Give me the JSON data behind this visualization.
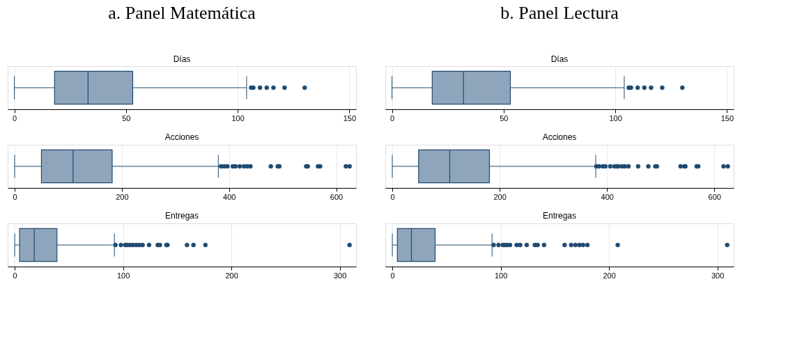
{
  "chart_data": [
    {
      "type": "box",
      "orientation": "horizontal",
      "title": "a. Panel Matemática",
      "subtitle": "Días",
      "categories": [
        null
      ],
      "color": "#8fa5bb",
      "xlim": [
        -3,
        153
      ],
      "xticks": [
        0,
        50,
        100,
        150
      ],
      "grid": "x",
      "tick_labels": "x",
      "boxes": [
        {
          "low": 0,
          "q1": 18,
          "median": 33,
          "q3": 53,
          "high": 104,
          "outliers": [
            106,
            107,
            110,
            113,
            116,
            121,
            130
          ]
        }
      ]
    },
    {
      "type": "box",
      "orientation": "horizontal",
      "title": "b. Panel Lectura",
      "subtitle": "Días",
      "categories": [
        null
      ],
      "color": "#8fa5bb",
      "xlim": [
        -3,
        153
      ],
      "xticks": [
        0,
        50,
        100,
        150
      ],
      "grid": "x",
      "tick_labels": "x",
      "boxes": [
        {
          "low": 0,
          "q1": 18,
          "median": 32,
          "q3": 53,
          "high": 104,
          "outliers": [
            106,
            107,
            110,
            113,
            116,
            121,
            130
          ]
        }
      ]
    },
    {
      "type": "box",
      "orientation": "horizontal",
      "title": "Acciones",
      "categories": [
        null
      ],
      "color": "#8fa5bb",
      "xlim": [
        -13,
        637
      ],
      "xticks": [
        0,
        200,
        400,
        600
      ],
      "grid": "x",
      "tick_labels": "x",
      "boxes": [
        {
          "low": 0,
          "q1": 50,
          "median": 109,
          "q3": 182,
          "high": 380,
          "outliers": [
            385,
            391,
            397,
            407,
            412,
            420,
            428,
            434,
            440,
            478,
            491,
            494,
            544,
            547,
            566,
            570,
            618,
            625
          ]
        }
      ]
    },
    {
      "type": "box",
      "orientation": "horizontal",
      "title": "Acciones",
      "categories": [
        null
      ],
      "color": "#8fa5bb",
      "xlim": [
        -13,
        636
      ],
      "xticks": [
        0,
        200,
        400,
        600
      ],
      "grid": "x",
      "tick_labels": "x",
      "boxes": [
        {
          "low": 0,
          "q1": 49,
          "median": 107,
          "q3": 181,
          "high": 379,
          "outliers": [
            380,
            385,
            392,
            397,
            406,
            414,
            418,
            421,
            428,
            433,
            440,
            458,
            477,
            490,
            493,
            537,
            544,
            546,
            567,
            570,
            617,
            625
          ]
        }
      ]
    },
    {
      "type": "box",
      "orientation": "horizontal",
      "title": "Entregas",
      "categories": [
        null
      ],
      "color": "#8fa5bb",
      "xlim": [
        -6.5,
        315
      ],
      "xticks": [
        0,
        100,
        200,
        300
      ],
      "grid": "x",
      "tick_labels": "x",
      "boxes": [
        {
          "low": 0,
          "q1": 4.5,
          "median": 18,
          "q3": 39,
          "high": 92,
          "outliers": [
            93,
            98,
            102,
            104,
            106.5,
            109,
            112,
            115,
            118,
            124,
            132,
            134,
            140,
            141,
            159,
            165,
            176,
            309
          ]
        }
      ]
    },
    {
      "type": "box",
      "orientation": "horizontal",
      "title": "Entregas",
      "categories": [
        null
      ],
      "color": "#8fa5bb",
      "xlim": [
        -6.5,
        315
      ],
      "xticks": [
        0,
        100,
        200,
        300
      ],
      "grid": "x",
      "tick_labels": "x",
      "boxes": [
        {
          "low": 0,
          "q1": 4.6,
          "median": 17.6,
          "q3": 39.5,
          "high": 92,
          "outliers": [
            93.5,
            98,
            102,
            104,
            106,
            108.6,
            114.7,
            118,
            124,
            131.5,
            134,
            140,
            159,
            165,
            169,
            172.7,
            176,
            180,
            208,
            309
          ]
        }
      ]
    }
  ]
}
